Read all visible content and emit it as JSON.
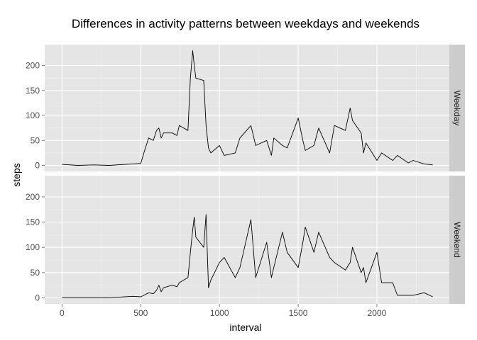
{
  "chart_data": {
    "type": "line",
    "title": "Differences in activity patterns between weekdays and weekends",
    "xlabel": "interval",
    "ylabel": "steps",
    "xlim": [
      -110,
      2460
    ],
    "ylim": [
      -12,
      242
    ],
    "x_ticks": [
      0,
      500,
      1000,
      1500,
      2000
    ],
    "y_ticks": [
      0,
      50,
      100,
      150,
      200
    ],
    "grid": true,
    "facets": [
      "Weekday",
      "Weekend"
    ],
    "series": [
      {
        "facet": "Weekday",
        "x": [
          0,
          100,
          200,
          300,
          400,
          450,
          500,
          520,
          550,
          580,
          600,
          615,
          630,
          645,
          700,
          730,
          745,
          800,
          815,
          830,
          840,
          850,
          900,
          915,
          930,
          945,
          1000,
          1030,
          1100,
          1130,
          1200,
          1230,
          1300,
          1330,
          1345,
          1400,
          1430,
          1500,
          1530,
          1545,
          1600,
          1630,
          1700,
          1730,
          1800,
          1830,
          1845,
          1900,
          1915,
          1930,
          2000,
          2030,
          2100,
          2130,
          2200,
          2230,
          2300,
          2355
        ],
        "values": [
          2,
          0,
          1,
          0,
          2,
          3,
          4,
          25,
          55,
          50,
          70,
          75,
          55,
          65,
          65,
          60,
          80,
          70,
          175,
          230,
          200,
          175,
          170,
          80,
          35,
          25,
          40,
          20,
          25,
          55,
          80,
          40,
          50,
          20,
          55,
          40,
          35,
          95,
          50,
          30,
          40,
          75,
          25,
          80,
          70,
          115,
          90,
          65,
          25,
          45,
          10,
          25,
          10,
          20,
          5,
          10,
          3,
          1
        ]
      },
      {
        "facet": "Weekend",
        "x": [
          0,
          100,
          200,
          300,
          400,
          450,
          500,
          520,
          550,
          580,
          600,
          615,
          630,
          645,
          700,
          730,
          745,
          800,
          815,
          830,
          840,
          850,
          900,
          915,
          930,
          945,
          1000,
          1030,
          1100,
          1130,
          1200,
          1230,
          1300,
          1330,
          1345,
          1400,
          1430,
          1500,
          1530,
          1545,
          1600,
          1630,
          1700,
          1730,
          1800,
          1830,
          1845,
          1900,
          1915,
          1930,
          2000,
          2030,
          2100,
          2130,
          2200,
          2230,
          2300,
          2355
        ],
        "values": [
          0,
          0,
          0,
          0,
          2,
          3,
          2,
          5,
          10,
          8,
          15,
          25,
          12,
          20,
          25,
          22,
          30,
          40,
          90,
          135,
          160,
          120,
          100,
          165,
          20,
          35,
          70,
          80,
          40,
          60,
          155,
          40,
          110,
          40,
          60,
          130,
          90,
          60,
          110,
          140,
          90,
          130,
          80,
          70,
          55,
          70,
          100,
          50,
          60,
          30,
          90,
          30,
          30,
          5,
          5,
          5,
          10,
          2
        ]
      }
    ]
  }
}
